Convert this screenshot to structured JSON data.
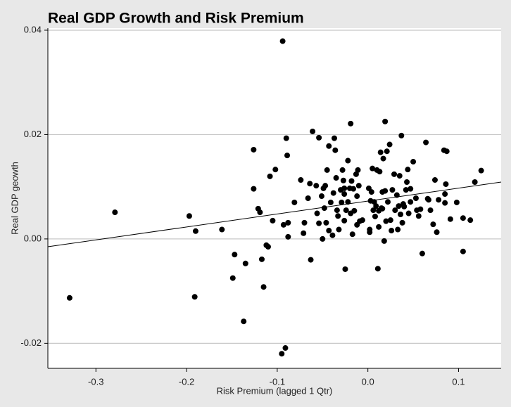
{
  "chart_data": {
    "type": "scatter",
    "title": "Real GDP Growth and Risk Premium",
    "x_label": "Risk Premium (lagged 1 Qtr)",
    "y_label": "Real GDP geowth",
    "color": "#000000",
    "grid": true,
    "xlim": [
      -0.353,
      0.147
    ],
    "ylim": [
      -0.0248,
      0.0404
    ],
    "xticks": [
      -0.3,
      -0.2,
      -0.1,
      {
        "value": 0,
        "label": "0.0"
      },
      0.1
    ],
    "yticks": [
      -0.02,
      {
        "value": 0,
        "label": "0.00"
      },
      0.02,
      0.04
    ],
    "x": [
      -0.329,
      -0.279,
      -0.197,
      -0.19,
      -0.191,
      -0.161,
      -0.149,
      -0.147,
      -0.137,
      -0.135,
      -0.126,
      -0.126,
      -0.121,
      -0.119,
      -0.117,
      -0.115,
      -0.112,
      -0.11,
      -0.108,
      -0.105,
      -0.102,
      -0.095,
      -0.094,
      -0.091,
      -0.093,
      -0.09,
      -0.089,
      -0.088,
      -0.088,
      -0.081,
      -0.074,
      -0.071,
      -0.07,
      -0.066,
      -0.064,
      -0.063,
      -0.061,
      -0.057,
      -0.056,
      -0.054,
      -0.054,
      -0.051,
      -0.05,
      -0.049,
      -0.048,
      -0.047,
      -0.046,
      -0.045,
      -0.043,
      -0.043,
      -0.041,
      -0.039,
      -0.038,
      -0.037,
      -0.036,
      -0.035,
      -0.034,
      -0.033,
      -0.032,
      -0.03,
      -0.029,
      -0.028,
      -0.027,
      -0.026,
      -0.026,
      -0.026,
      -0.025,
      -0.024,
      -0.022,
      -0.022,
      -0.02,
      -0.019,
      -0.019,
      -0.018,
      -0.017,
      -0.016,
      -0.015,
      -0.013,
      -0.012,
      -0.012,
      -0.011,
      -0.01,
      -0.009,
      -0.006,
      0.001,
      0.002,
      0.002,
      0.003,
      0.004,
      0.005,
      0.006,
      0.007,
      0.008,
      0.009,
      0.01,
      0.011,
      0.012,
      0.012,
      0.013,
      0.014,
      0.015,
      0.016,
      0.016,
      0.017,
      0.018,
      0.019,
      0.019,
      0.02,
      0.021,
      0.022,
      0.024,
      0.025,
      0.026,
      0.027,
      0.029,
      0.03,
      0.032,
      0.033,
      0.034,
      0.035,
      0.036,
      0.037,
      0.038,
      0.039,
      0.04,
      0.042,
      0.043,
      0.044,
      0.045,
      0.047,
      0.047,
      0.05,
      0.053,
      0.054,
      0.056,
      0.058,
      0.06,
      0.064,
      0.066,
      0.067,
      0.069,
      0.072,
      0.074,
      0.076,
      0.078,
      0.084,
      0.085,
      0.085,
      0.086,
      0.087,
      0.091,
      0.098,
      0.105,
      0.105,
      0.113,
      0.118,
      0.125
    ],
    "values": [
      -0.0113,
      0.0051,
      0.0044,
      0.0015,
      -0.0111,
      0.0018,
      -0.0075,
      -0.003,
      -0.0158,
      -0.0047,
      0.0171,
      0.0096,
      0.0058,
      0.0051,
      -0.0039,
      -0.0092,
      -0.0012,
      -0.0015,
      0.012,
      0.0035,
      0.0133,
      -0.022,
      0.0379,
      -0.0209,
      0.0027,
      0.0193,
      0.016,
      0.0031,
      0.0004,
      0.007,
      0.0113,
      0.0011,
      0.0031,
      0.0078,
      0.0106,
      -0.004,
      0.0206,
      0.0102,
      0.0049,
      0.0194,
      0.003,
      0.0082,
      0.0,
      0.0097,
      0.0059,
      0.0102,
      0.0031,
      0.0132,
      0.0178,
      0.0016,
      0.007,
      0.0007,
      0.0088,
      0.0193,
      0.017,
      0.0117,
      0.0055,
      0.0044,
      0.0018,
      0.0094,
      0.007,
      0.0132,
      0.0112,
      0.0035,
      0.0097,
      0.0086,
      -0.0058,
      0.0055,
      0.0071,
      0.015,
      0.0097,
      0.0221,
      0.0049,
      0.0111,
      0.0009,
      0.0096,
      0.0054,
      0.0124,
      0.0082,
      0.0027,
      0.0132,
      0.0102,
      0.0034,
      0.0036,
      0.0097,
      0.0013,
      0.0018,
      0.0073,
      0.009,
      0.0135,
      0.0055,
      0.0071,
      0.0043,
      0.0063,
      0.0132,
      -0.0057,
      0.0023,
      0.0054,
      0.0129,
      0.0166,
      0.0059,
      0.009,
      0.0058,
      0.0154,
      -0.0004,
      0.0225,
      0.0092,
      0.0034,
      0.0168,
      0.0071,
      0.0181,
      0.0036,
      0.0016,
      0.0094,
      0.0124,
      0.0055,
      0.0084,
      0.0018,
      0.0063,
      0.0121,
      0.0047,
      0.0198,
      0.0031,
      0.0067,
      0.0062,
      0.0094,
      0.0109,
      0.0133,
      0.0049,
      0.0096,
      0.0071,
      0.0148,
      0.0078,
      0.0055,
      0.0044,
      0.0057,
      -0.0028,
      0.0185,
      0.0077,
      0.0075,
      0.0055,
      0.0028,
      0.0113,
      0.0013,
      0.0075,
      0.017,
      0.0086,
      0.0069,
      0.0105,
      0.0168,
      0.0038,
      0.007,
      0.004,
      -0.0024,
      0.0036,
      0.0109,
      0.0131
    ],
    "trendline": {
      "x": [
        -0.353,
        0.147
      ],
      "values": [
        -0.0015,
        0.0109
      ]
    }
  }
}
